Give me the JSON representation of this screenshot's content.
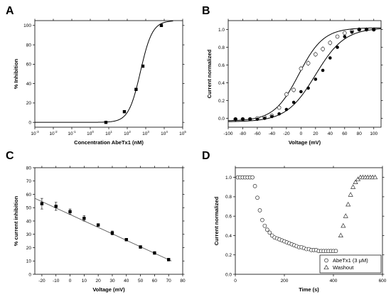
{
  "chart_data": [
    {
      "panel": "A",
      "type": "scatter",
      "xscale": "log",
      "xlabel": "Concentration AbeTx1 (nM)",
      "ylabel": "% Inhibition",
      "xlim": [
        0.001,
        100000
      ],
      "ylim": [
        -5,
        105
      ],
      "xticks": [
        0.001,
        0.01,
        0.1,
        1,
        10,
        100,
        1000,
        10000,
        100000
      ],
      "xtick_labels": [
        {
          "base": "10",
          "exp": "-3"
        },
        {
          "base": "10",
          "exp": "-2"
        },
        {
          "base": "10",
          "exp": "-1"
        },
        {
          "base": "10",
          "exp": "0"
        },
        {
          "base": "10",
          "exp": "1"
        },
        {
          "base": "10",
          "exp": "2"
        },
        {
          "base": "10",
          "exp": "3"
        },
        {
          "base": "10",
          "exp": "4"
        },
        {
          "base": "10",
          "exp": "5"
        }
      ],
      "yticks": [
        0,
        20,
        40,
        60,
        80,
        100
      ],
      "points": [
        {
          "x": 7,
          "y": 0
        },
        {
          "x": 70,
          "y": 11
        },
        {
          "x": 300,
          "y": 34
        },
        {
          "x": 700,
          "y": 58
        },
        {
          "x": 7000,
          "y": 100
        }
      ],
      "fit": {
        "model": "hill",
        "ic50": 520,
        "n": 1.35,
        "bottom": 0,
        "top": 105
      }
    },
    {
      "panel": "B",
      "type": "scatter",
      "xlabel": "Voltage (mV)",
      "ylabel": "Current normalized",
      "xlim": [
        -100,
        110
      ],
      "ylim": [
        -0.1,
        1.1
      ],
      "xticks": [
        -100,
        -80,
        -60,
        -40,
        -20,
        0,
        20,
        40,
        60,
        80,
        100
      ],
      "yticks": [
        0.0,
        0.2,
        0.4,
        0.6,
        0.8,
        1.0
      ],
      "series": [
        {
          "marker": "open-circle",
          "points": [
            {
              "x": -90,
              "y": -0.01
            },
            {
              "x": -80,
              "y": -0.01
            },
            {
              "x": -70,
              "y": -0.01
            },
            {
              "x": -60,
              "y": 0.0
            },
            {
              "x": -50,
              "y": 0.01
            },
            {
              "x": -40,
              "y": 0.03
            },
            {
              "x": -30,
              "y": 0.12
            },
            {
              "x": -20,
              "y": 0.27
            },
            {
              "x": -10,
              "y": 0.32
            },
            {
              "x": 0,
              "y": 0.56
            },
            {
              "x": 10,
              "y": 0.62
            },
            {
              "x": 20,
              "y": 0.72
            },
            {
              "x": 30,
              "y": 0.78
            },
            {
              "x": 40,
              "y": 0.85
            },
            {
              "x": 50,
              "y": 0.92
            },
            {
              "x": 60,
              "y": 0.96
            },
            {
              "x": 70,
              "y": 0.98
            },
            {
              "x": 80,
              "y": 1.0
            },
            {
              "x": 90,
              "y": 1.0
            },
            {
              "x": 100,
              "y": 1.0
            }
          ],
          "fit": {
            "v50": -3,
            "k": 17,
            "bottom": -0.03,
            "top": 1.02
          }
        },
        {
          "marker": "filled-circle",
          "points": [
            {
              "x": -90,
              "y": -0.01
            },
            {
              "x": -80,
              "y": -0.01
            },
            {
              "x": -70,
              "y": -0.01
            },
            {
              "x": -60,
              "y": -0.01
            },
            {
              "x": -50,
              "y": 0.0
            },
            {
              "x": -40,
              "y": 0.02
            },
            {
              "x": -30,
              "y": 0.05
            },
            {
              "x": -20,
              "y": 0.1
            },
            {
              "x": -10,
              "y": 0.18
            },
            {
              "x": 0,
              "y": 0.3
            },
            {
              "x": 10,
              "y": 0.34
            },
            {
              "x": 20,
              "y": 0.44
            },
            {
              "x": 30,
              "y": 0.54
            },
            {
              "x": 40,
              "y": 0.68
            },
            {
              "x": 50,
              "y": 0.8
            },
            {
              "x": 60,
              "y": 0.92
            },
            {
              "x": 70,
              "y": 0.97
            },
            {
              "x": 80,
              "y": 1.0
            },
            {
              "x": 90,
              "y": 1.0
            },
            {
              "x": 100,
              "y": 1.0
            }
          ],
          "fit": {
            "v50": 20,
            "k": 20,
            "bottom": -0.04,
            "top": 1.02
          }
        }
      ]
    },
    {
      "panel": "C",
      "type": "scatter",
      "xlabel": "Voltage (mV)",
      "ylabel": "% current inhibition",
      "xlim": [
        -25,
        80
      ],
      "ylim": [
        0,
        80
      ],
      "xticks": [
        -20,
        -10,
        0,
        10,
        20,
        30,
        40,
        50,
        60,
        70,
        80
      ],
      "yticks": [
        0,
        10,
        20,
        30,
        40,
        50,
        60,
        70,
        80
      ],
      "points": [
        {
          "x": -20,
          "y": 53,
          "err": 4
        },
        {
          "x": -10,
          "y": 51,
          "err": 3
        },
        {
          "x": 0,
          "y": 47,
          "err": 2
        },
        {
          "x": 10,
          "y": 42,
          "err": 2
        },
        {
          "x": 20,
          "y": 37,
          "err": 1
        },
        {
          "x": 30,
          "y": 31,
          "err": 1.5
        },
        {
          "x": 40,
          "y": 26,
          "err": 1
        },
        {
          "x": 50,
          "y": 20.5,
          "err": 1
        },
        {
          "x": 60,
          "y": 16,
          "err": 1
        },
        {
          "x": 70,
          "y": 11,
          "err": 1
        }
      ],
      "fit": {
        "model": "linear",
        "x0": -25,
        "y0": 57,
        "x1": 72,
        "y1": 10
      }
    },
    {
      "panel": "D",
      "type": "scatter",
      "xlabel": "Time (s)",
      "ylabel": "Current normalized",
      "xlim": [
        0,
        600
      ],
      "ylim": [
        0.0,
        1.1
      ],
      "xticks": [
        0,
        200,
        400,
        600
      ],
      "yticks": [
        0.0,
        0.2,
        0.4,
        0.6,
        0.8,
        1.0
      ],
      "legend_position": "bottom-right",
      "series": [
        {
          "name": "AbeTx1 (3 μM)",
          "marker": "open-circle",
          "points": [
            {
              "x": 10,
              "y": 1.0
            },
            {
              "x": 20,
              "y": 1.0
            },
            {
              "x": 30,
              "y": 1.0
            },
            {
              "x": 40,
              "y": 1.0
            },
            {
              "x": 50,
              "y": 1.0
            },
            {
              "x": 60,
              "y": 1.0
            },
            {
              "x": 70,
              "y": 1.0
            },
            {
              "x": 80,
              "y": 0.91
            },
            {
              "x": 90,
              "y": 0.79
            },
            {
              "x": 100,
              "y": 0.66
            },
            {
              "x": 110,
              "y": 0.56
            },
            {
              "x": 120,
              "y": 0.5
            },
            {
              "x": 130,
              "y": 0.46
            },
            {
              "x": 140,
              "y": 0.43
            },
            {
              "x": 150,
              "y": 0.4
            },
            {
              "x": 160,
              "y": 0.38
            },
            {
              "x": 170,
              "y": 0.37
            },
            {
              "x": 180,
              "y": 0.36
            },
            {
              "x": 190,
              "y": 0.35
            },
            {
              "x": 200,
              "y": 0.34
            },
            {
              "x": 210,
              "y": 0.33
            },
            {
              "x": 220,
              "y": 0.32
            },
            {
              "x": 230,
              "y": 0.31
            },
            {
              "x": 240,
              "y": 0.3
            },
            {
              "x": 250,
              "y": 0.29
            },
            {
              "x": 260,
              "y": 0.28
            },
            {
              "x": 270,
              "y": 0.28
            },
            {
              "x": 280,
              "y": 0.27
            },
            {
              "x": 290,
              "y": 0.26
            },
            {
              "x": 300,
              "y": 0.26
            },
            {
              "x": 310,
              "y": 0.25
            },
            {
              "x": 320,
              "y": 0.25
            },
            {
              "x": 330,
              "y": 0.25
            },
            {
              "x": 340,
              "y": 0.24
            },
            {
              "x": 350,
              "y": 0.24
            },
            {
              "x": 360,
              "y": 0.24
            },
            {
              "x": 370,
              "y": 0.24
            },
            {
              "x": 380,
              "y": 0.24
            },
            {
              "x": 390,
              "y": 0.24
            },
            {
              "x": 400,
              "y": 0.24
            },
            {
              "x": 410,
              "y": 0.24
            }
          ]
        },
        {
          "name": "Washout",
          "marker": "open-triangle",
          "points": [
            {
              "x": 430,
              "y": 0.4
            },
            {
              "x": 440,
              "y": 0.5
            },
            {
              "x": 450,
              "y": 0.6
            },
            {
              "x": 460,
              "y": 0.72
            },
            {
              "x": 470,
              "y": 0.82
            },
            {
              "x": 480,
              "y": 0.9
            },
            {
              "x": 490,
              "y": 0.95
            },
            {
              "x": 500,
              "y": 0.98
            },
            {
              "x": 510,
              "y": 1.0
            },
            {
              "x": 520,
              "y": 1.0
            },
            {
              "x": 530,
              "y": 1.0
            },
            {
              "x": 540,
              "y": 1.0
            },
            {
              "x": 550,
              "y": 1.0
            },
            {
              "x": 560,
              "y": 1.0
            },
            {
              "x": 570,
              "y": 1.0
            }
          ]
        }
      ]
    }
  ]
}
